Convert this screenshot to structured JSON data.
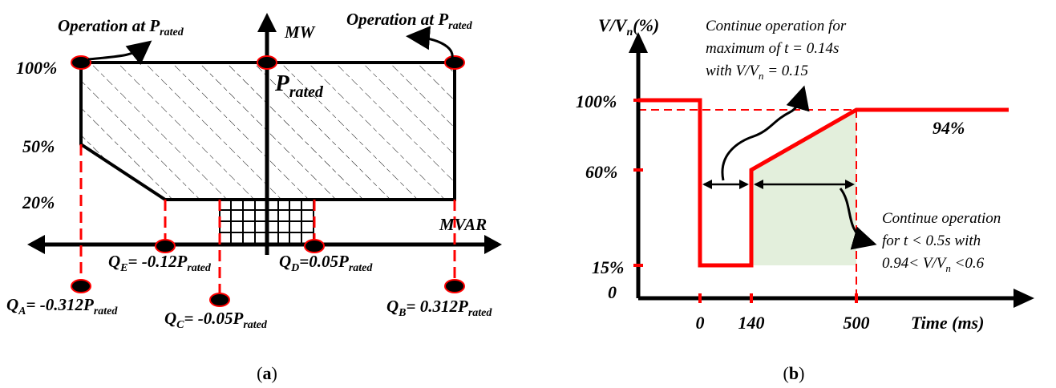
{
  "panel_a": {
    "caption_letter": "a",
    "axis_y": "MW",
    "axis_x": "MVAR",
    "op_left": {
      "main": "Operation at P",
      "sub": "rated"
    },
    "op_right": {
      "main": "Operation at P",
      "sub": "rated"
    },
    "p_rated": {
      "main": "P",
      "sub": "rated"
    },
    "levels": [
      "100%",
      "50%",
      "20%"
    ],
    "qa": {
      "q": "Q",
      "qsub": "A",
      "mid": "= -0.312P",
      "sub": "rated"
    },
    "qb": {
      "q": "Q",
      "qsub": "B",
      "mid": "= 0.312P",
      "sub": "rated"
    },
    "qc": {
      "q": "Q",
      "qsub": "C",
      "mid": "= -0.05P",
      "sub": "rated"
    },
    "qd": {
      "q": "Q",
      "qsub": "D",
      "mid": "=0.05P",
      "sub": "rated"
    },
    "qe": {
      "q": "Q",
      "qsub": "E",
      "mid": "= -0.12P",
      "sub": "rated"
    }
  },
  "panel_b": {
    "caption_letter": "b",
    "ylabel": {
      "a": "V/V",
      "sub": "n",
      "b": "(%)"
    },
    "xlabel": "Time (ms)",
    "y_ticks": [
      "100%",
      "60%",
      "15%",
      "0"
    ],
    "x_ticks": [
      "0",
      "140",
      "500"
    ],
    "level_label": "94%",
    "note_top": [
      "Continue operation for",
      "maximum of t = 0.14s",
      {
        "a": "with V/V",
        "sub": "n",
        "b": " = 0.15"
      }
    ],
    "note_right": [
      "Continue operation",
      "for t < 0.5s with",
      {
        "a": "0.94< V/V",
        "sub": "n",
        "b": " <0.6"
      }
    ],
    "colors": {
      "curve": "#ff0000",
      "shade": "#e3efdc"
    }
  }
}
